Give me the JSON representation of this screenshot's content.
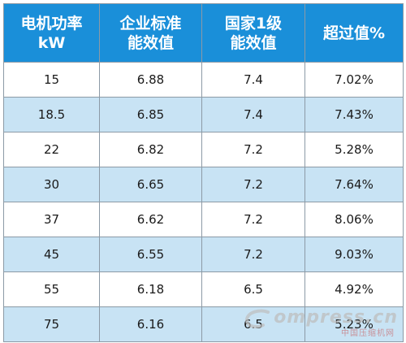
{
  "headers": [
    [
      "电机功率",
      "kW"
    ],
    [
      "企业标准",
      "能效值"
    ],
    [
      "国家1级",
      "能效值"
    ],
    [
      "超过值%"
    ]
  ],
  "rows": [
    [
      "15",
      "6.88",
      "7.4",
      "7.02%"
    ],
    [
      "18.5",
      "6.85",
      "7.4",
      "7.43%"
    ],
    [
      "22",
      "6.82",
      "7.2",
      "5.28%"
    ],
    [
      "30",
      "6.65",
      "7.2",
      "7.64%"
    ],
    [
      "37",
      "6.62",
      "7.2",
      "8.06%"
    ],
    [
      "45",
      "6.55",
      "7.2",
      "9.03%"
    ],
    [
      "55",
      "6.18",
      "6.5",
      "4.92%"
    ],
    [
      "75",
      "6.16",
      "6.5",
      "5.23%"
    ]
  ],
  "watermark": {
    "main": "ompress.cn",
    "sub": "中国压缩机网"
  },
  "colors": {
    "header_bg": "#1a8fd9",
    "header_text": "#ffffff",
    "row_alt_bg": "#c8e3f4",
    "row_plain_bg": "#ffffff",
    "border": "#8c9aa6"
  }
}
